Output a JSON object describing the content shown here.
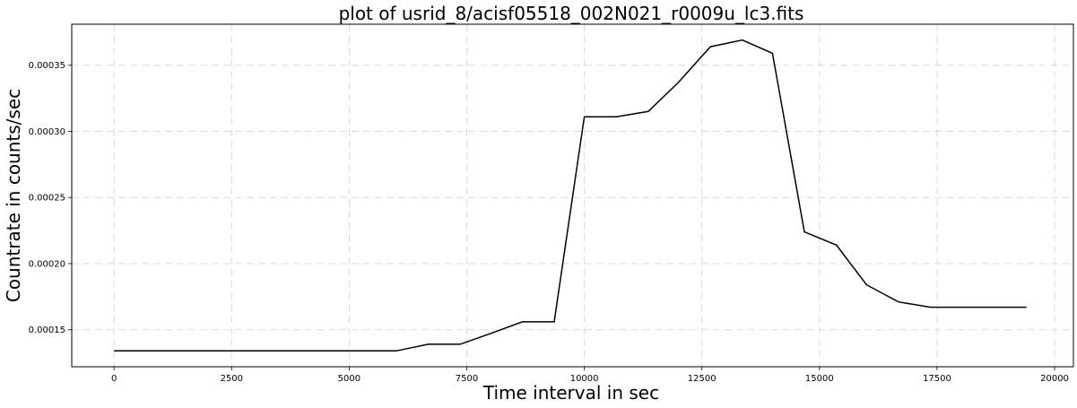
{
  "chart_data": {
    "type": "line",
    "title": "plot of usrid_8/acisf05518_002N021_r0009u_lc3.fits",
    "xlabel": "Time interval in sec",
    "ylabel": "Countrate in counts/sec",
    "xlim": [
      -900,
      20400
    ],
    "ylim": [
      0.000122,
      0.000381
    ],
    "xticks": [
      0,
      2500,
      5000,
      7500,
      10000,
      12500,
      15000,
      17500,
      20000
    ],
    "xtick_labels": [
      "0",
      "2500",
      "5000",
      "7500",
      "10000",
      "12500",
      "15000",
      "17500",
      "20000"
    ],
    "yticks": [
      0.00015,
      0.0002,
      0.00025,
      0.0003,
      0.00035
    ],
    "ytick_labels": [
      "0.00015",
      "0.00020",
      "0.00025",
      "0.00030",
      "0.00035"
    ],
    "grid": true,
    "series": [
      {
        "color": "#000000",
        "x": [
          0,
          6000,
          6680,
          7360,
          8000,
          8680,
          9360,
          10000,
          10680,
          11360,
          12000,
          12680,
          13360,
          14000,
          14680,
          15360,
          16000,
          16680,
          17360,
          18000,
          19400
        ],
        "y": [
          0.000134,
          0.000134,
          0.000139,
          0.000139,
          0.000147,
          0.000156,
          0.000156,
          0.000311,
          0.000311,
          0.000315,
          0.000337,
          0.000364,
          0.000369,
          0.000359,
          0.000224,
          0.000214,
          0.000184,
          0.000171,
          0.000167,
          0.000167,
          0.000167
        ]
      }
    ]
  }
}
